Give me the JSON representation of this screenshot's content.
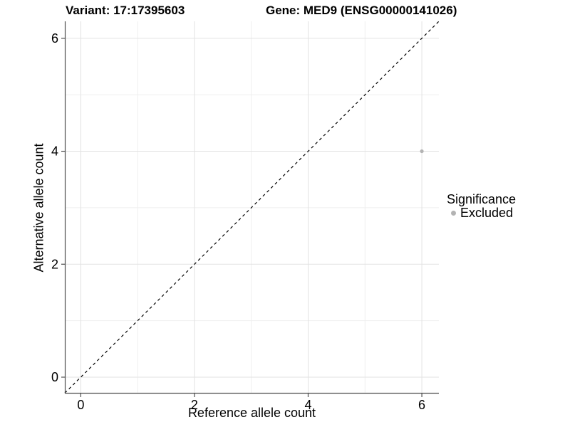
{
  "figure": {
    "title_left": "Variant: 17:17395603",
    "title_right": "Gene: MED9 (ENSG00000141026)"
  },
  "chart_data": {
    "type": "scatter",
    "title": "Variant: 17:17395603  |  Gene: MED9 (ENSG00000141026)",
    "xlabel": "Reference allele count",
    "ylabel": "Alternative allele count",
    "xlim": [
      -0.28,
      6.3
    ],
    "ylim": [
      -0.29,
      6.3
    ],
    "x_major_ticks": [
      0,
      2,
      4,
      6
    ],
    "y_major_ticks": [
      0,
      2,
      4,
      6
    ],
    "x_minor_ticks": [
      1,
      3,
      5
    ],
    "y_minor_ticks": [
      1,
      3,
      5
    ],
    "grid": "major and minor gridlines on, white panel background",
    "reference_line": {
      "type": "identity y=x",
      "style": "dashed",
      "color": "#000000"
    },
    "series": [
      {
        "name": "Excluded",
        "color": "#b3b3b3",
        "points": [
          {
            "x": 6,
            "y": 4
          }
        ]
      }
    ],
    "legend": {
      "title": "Significance",
      "position": "right",
      "items": [
        {
          "label": "Excluded",
          "color": "#b3b3b3"
        }
      ]
    }
  },
  "colors": {
    "background": "#ffffff",
    "grid_major": "#e2e2e2",
    "grid_minor": "#efefef",
    "axis_line": "#4d4d4d",
    "text": "#000000",
    "excluded_point": "#b3b3b3"
  }
}
